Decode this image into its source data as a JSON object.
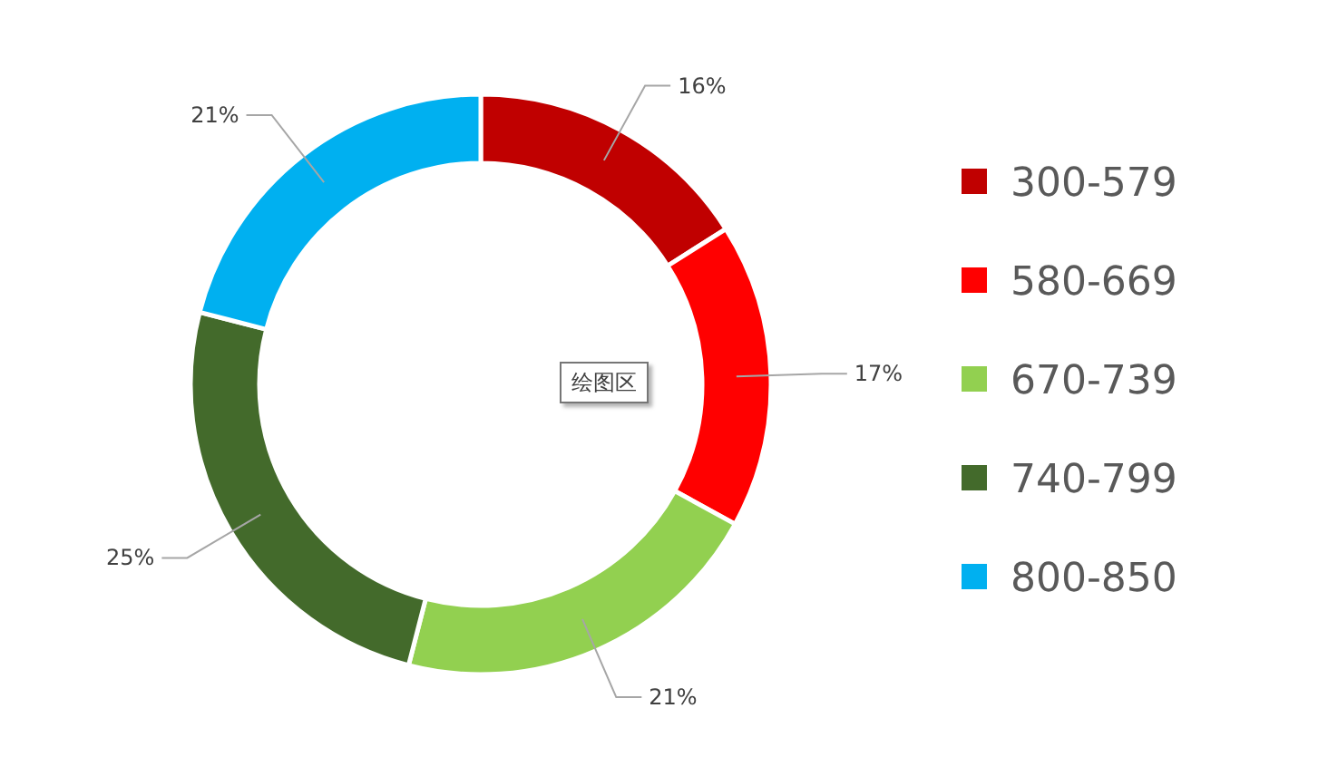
{
  "chart_data": {
    "type": "donut",
    "categories": [
      "300-579",
      "580-669",
      "670-739",
      "740-799",
      "800-850"
    ],
    "values": [
      16,
      17,
      21,
      25,
      21
    ],
    "colors": [
      "#c00000",
      "#ff0000",
      "#92d050",
      "#436a2b",
      "#00b0f0"
    ],
    "value_labels": [
      "16%",
      "17%",
      "21%",
      "25%",
      "21%"
    ],
    "legend": "right",
    "annotations": [
      "绘图区"
    ]
  }
}
